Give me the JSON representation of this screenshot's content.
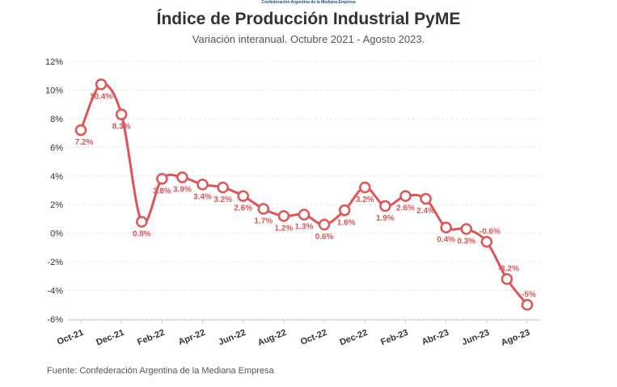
{
  "logo_text": "Confederación Argentina de la Mediana Empresa",
  "title": "Índice de Producción Industrial PyME",
  "subtitle": "Variación interanual. Octubre 2021 - Agosto 2023.",
  "source": "Fuente: Confederación Argentina de la Mediana Empresa",
  "colors": {
    "line": "#e05555",
    "grid": "#e6e6e6",
    "label": "#e05555",
    "axis_text": "#333333"
  },
  "chart_data": {
    "type": "line",
    "title": "Índice de Producción Industrial PyME",
    "subtitle": "Variación interanual. Octubre 2021 - Agosto 2023.",
    "xlabel": "",
    "ylabel": "",
    "ylim": [
      -6,
      12
    ],
    "yticks": [
      -6,
      -4,
      -2,
      0,
      2,
      4,
      6,
      8,
      10,
      12
    ],
    "ytick_labels": [
      "-6%",
      "-4%",
      "-2%",
      "0%",
      "2%",
      "4%",
      "6%",
      "8%",
      "10%",
      "12%"
    ],
    "grid": true,
    "x_tick_labels": [
      "Oct-21",
      "Dec-21",
      "Feb-22",
      "Apr-22",
      "Jun-22",
      "Aug-22",
      "Oct-22",
      "Dec-22",
      "Feb-23",
      "Abr-23",
      "Jun-23",
      "Ago-23"
    ],
    "series": [
      {
        "values": [
          7.2,
          10.4,
          8.3,
          0.8,
          3.8,
          3.9,
          3.4,
          3.2,
          2.6,
          1.7,
          1.2,
          1.3,
          0.6,
          1.6,
          3.2,
          1.9,
          2.6,
          2.4,
          0.4,
          0.3,
          -0.6,
          -3.2,
          -5.0
        ],
        "labels": [
          "7.2%",
          "10.4%",
          "8.3%",
          "0.8%",
          "3.8%",
          "3.9%",
          "3.4%",
          "3.2%",
          "2.6%",
          "1.7%",
          "1.2%",
          "1.3%",
          "0.6%",
          "1.6%",
          "3.2%",
          "1.9%",
          "2.6%",
          "2.4%",
          "0.4%",
          "0.3%",
          "-0.6%",
          "-3.2%",
          "-5%"
        ]
      }
    ]
  }
}
